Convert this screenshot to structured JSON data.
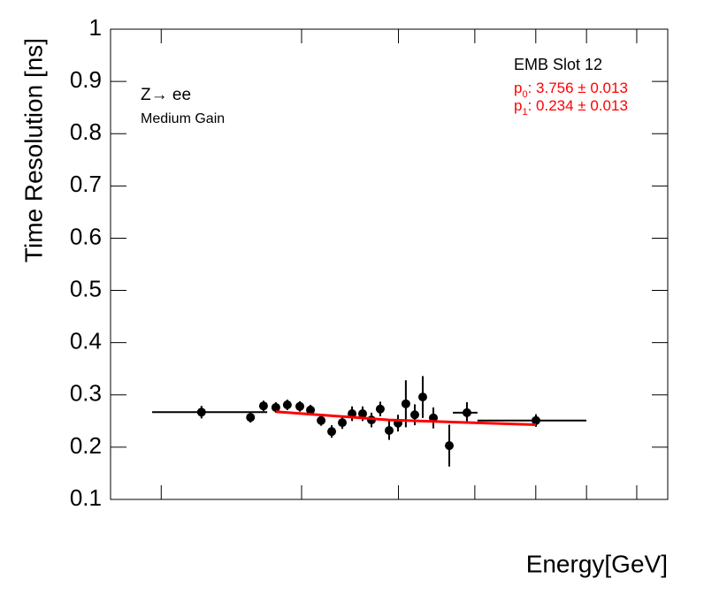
{
  "chart_data": {
    "type": "errorbar",
    "xlabel": "Energy[GeV]",
    "ylabel": "Time Resolution [ns]",
    "log_x": true,
    "xlim": [
      10,
      1000
    ],
    "xticks": [
      15.2,
      48.5,
      108,
      203,
      336,
      511,
      774
    ],
    "ylim": [
      0.1,
      1
    ],
    "yticks": [
      0.1,
      0.2,
      0.3,
      0.4,
      0.5,
      0.6,
      0.7,
      0.8,
      0.9,
      1
    ],
    "color": "#000000",
    "x": [
      21.2,
      31.8,
      35.4,
      39.2,
      43.1,
      47.8,
      52.2,
      57.0,
      62.2,
      67.9,
      73.6,
      80.3,
      86.4,
      92.9,
      100,
      107.6,
      114.8,
      123.6,
      132.0,
      144.1,
      164.4,
      190.2,
      336.5
    ],
    "x_low": [
      14.1,
      null,
      null,
      null,
      null,
      null,
      null,
      null,
      null,
      null,
      null,
      null,
      null,
      null,
      null,
      null,
      null,
      null,
      null,
      null,
      null,
      169.3,
      207.5
    ],
    "x_high": [
      36.5,
      null,
      null,
      null,
      null,
      null,
      null,
      null,
      null,
      null,
      null,
      null,
      null,
      null,
      null,
      null,
      null,
      null,
      null,
      null,
      null,
      207.5,
      510.5
    ],
    "values": [
      0.267,
      0.257,
      0.279,
      0.276,
      0.281,
      0.278,
      0.271,
      0.251,
      0.23,
      0.247,
      0.264,
      0.264,
      0.252,
      0.273,
      0.232,
      0.246,
      0.283,
      0.262,
      0.296,
      0.256,
      0.203,
      0.266,
      0.251
    ],
    "errors": [
      0.012,
      0.01,
      0.01,
      0.01,
      0.01,
      0.01,
      0.01,
      0.01,
      0.012,
      0.012,
      0.014,
      0.014,
      0.014,
      0.014,
      0.018,
      0.016,
      0.045,
      0.02,
      0.04,
      0.02,
      0.04,
      0.02,
      0.012
    ],
    "fit": {
      "color": "#ff0000",
      "x": [
        39.2,
        100,
        336.5
      ],
      "y": [
        0.268,
        0.252,
        0.243
      ]
    },
    "annotations": {
      "process": "Z→ ee",
      "gain": "Medium Gain",
      "slot": "EMB Slot 12"
    },
    "fit_params": [
      {
        "name": "p",
        "sub": "0",
        "text": ": 3.756 ± 0.013"
      },
      {
        "name": "p",
        "sub": "1",
        "text": ": 0.234 ± 0.013"
      }
    ]
  }
}
